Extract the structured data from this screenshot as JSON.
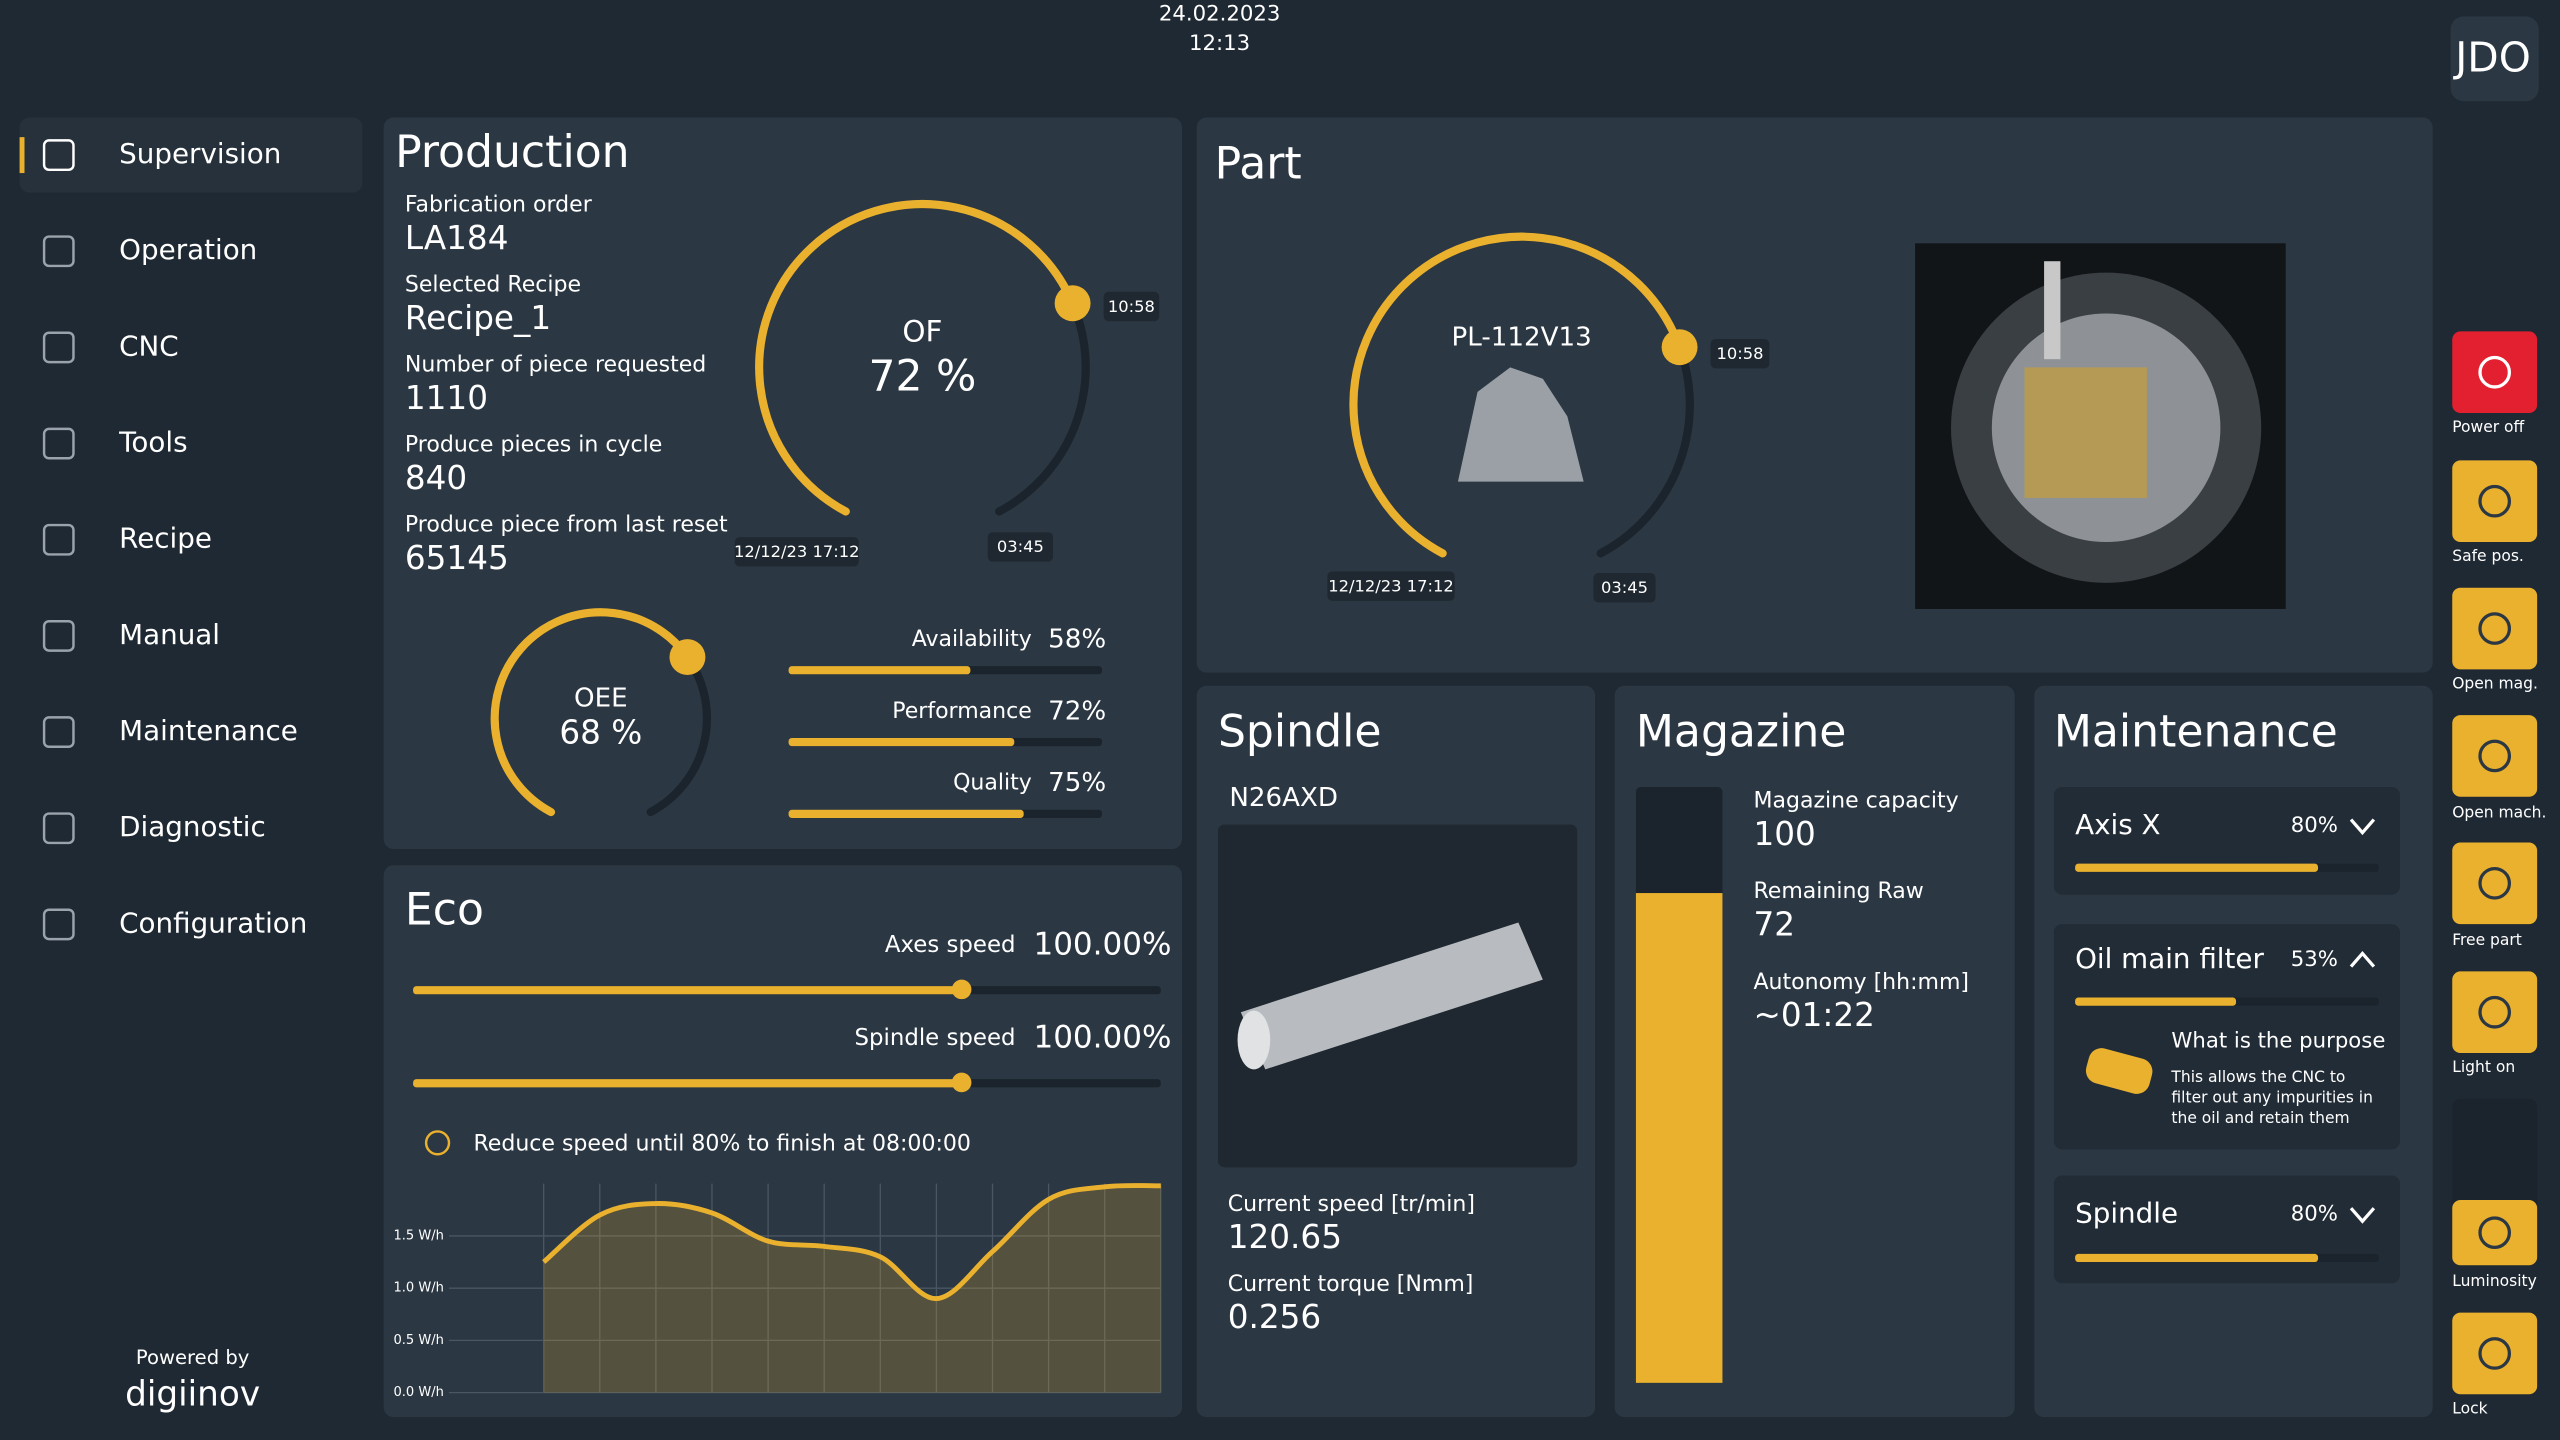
{
  "header": {
    "date": "24.02.2023",
    "time": "12:13",
    "user": "JDO"
  },
  "sidebar": {
    "items": [
      "Supervision",
      "Operation",
      "CNC",
      "Tools",
      "Recipe",
      "Manual",
      "Maintenance",
      "Diagnostic",
      "Configuration"
    ],
    "powered_by": "Powered by",
    "brand": "digiinov"
  },
  "production": {
    "title": "Production",
    "fields": [
      {
        "label": "Fabrication order",
        "value": "LA184"
      },
      {
        "label": "Selected Recipe",
        "value": "Recipe_1"
      },
      {
        "label": "Number of piece requested",
        "value": 1110
      },
      {
        "label": "Produce pieces in cycle",
        "value": 840
      },
      {
        "label": "Produce piece from last reset",
        "value": 65145
      }
    ],
    "of_gauge": {
      "name": "OF",
      "value": 72,
      "label": "72 %",
      "knob_time": "10:58",
      "start": "12/12/23 17:12",
      "remaining": "03:45"
    },
    "oee_gauge": {
      "name": "OEE",
      "value": 68,
      "label": "68 %"
    },
    "metrics": [
      {
        "name": "Availability",
        "value": 58,
        "label": "58%"
      },
      {
        "name": "Performance",
        "value": 72,
        "label": "72%"
      },
      {
        "name": "Quality",
        "value": 75,
        "label": "75%"
      }
    ]
  },
  "part": {
    "title": "Part",
    "ref": "PL-112V13",
    "knob_time": "10:58",
    "start": "12/12/23 17:12",
    "remaining": "03:45"
  },
  "spindle": {
    "title": "Spindle",
    "ref": "N26AXD",
    "fields": [
      {
        "label": "Current speed [tr/min]",
        "value": 120.65
      },
      {
        "label": "Current torque [Nmm]",
        "value": 0.256
      }
    ]
  },
  "magazine": {
    "title": "Magazine",
    "fields": [
      {
        "label": "Magazine capacity",
        "value": 100
      },
      {
        "label": "Remaining Raw",
        "value": 72
      },
      {
        "label": "Autonomy [hh:mm]",
        "value": "~01:22"
      }
    ]
  },
  "maintenance": {
    "title": "Maintenance",
    "items": [
      {
        "name": "Axis X",
        "value": 80,
        "label": "80%"
      },
      {
        "name": "Oil main filter",
        "value": 53,
        "label": "53%",
        "detail_title": "What is the purpose",
        "detail_text": [
          "This allows the CNC to",
          "filter out any impurities in",
          "the oil and retain them"
        ]
      },
      {
        "name": "Spindle",
        "value": 80,
        "label": "80%"
      }
    ]
  },
  "eco": {
    "title": "Eco",
    "sliders": [
      {
        "name": "Axes speed",
        "label": "100.00%"
      },
      {
        "name": "Spindle speed",
        "label": "100.00%"
      }
    ],
    "tip": "Reduce speed until 80% to finish at 08:00:00",
    "chart": {
      "type": "line",
      "color": "#eab12f",
      "values": [
        1.25,
        1.7,
        1.81,
        1.72,
        1.45,
        1.4,
        1.3,
        0.9,
        1.35,
        1.85,
        1.97,
        1.98
      ],
      "ylim": [
        0,
        2
      ],
      "yticks": [
        {
          "value": 0,
          "label": "0.0 W/h"
        },
        {
          "value": 0.5,
          "label": "0.5 W/h"
        },
        {
          "value": 1,
          "label": "1.0 W/h"
        },
        {
          "value": 1.5,
          "label": "1.5 W/h"
        }
      ],
      "grid": true
    }
  },
  "actions": [
    "Power off",
    "Safe pos.",
    "Open mag.",
    "Open mach.",
    "Free part",
    "Light on",
    "Luminosity",
    "Lock"
  ]
}
